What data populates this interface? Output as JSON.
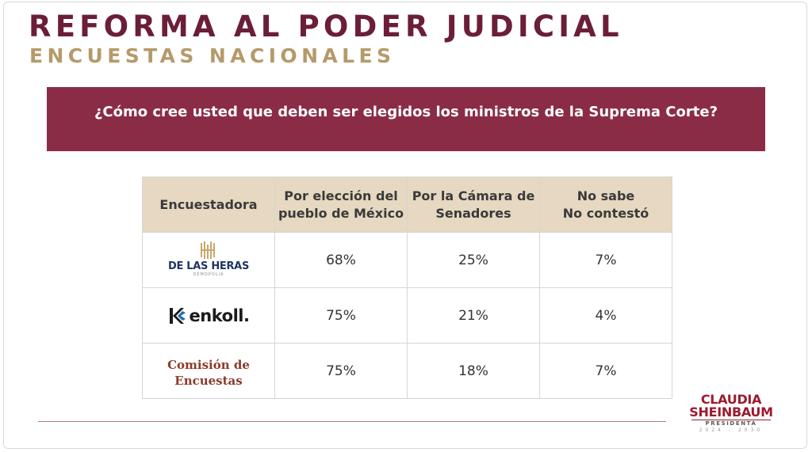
{
  "title": "REFORMA AL PODER JUDICIAL",
  "subtitle": "ENCUESTAS NACIONALES",
  "question": "¿Cómo cree usted que deben ser elegidos los ministros de la Suprema Corte?",
  "chart_data": {
    "type": "table",
    "columns": [
      "Encuestadora",
      "Por elección del pueblo de México",
      "Por la Cámara de Senadores",
      "No sabe No contestó"
    ],
    "header_lines": [
      [
        "Encuestadora"
      ],
      [
        "Por elección del",
        "pueblo de México"
      ],
      [
        "Por la Cámara de",
        "Senadores"
      ],
      [
        "No sabe",
        "No contestó"
      ]
    ],
    "rows": [
      {
        "pollster": "DE LAS HERAS",
        "pollster_sub": "DEMOPOLIA",
        "logo_icon": "de-las-heras-logo",
        "values": [
          "68%",
          "25%",
          "7%"
        ]
      },
      {
        "pollster": "enkoll.",
        "logo_icon": "enkoll-logo",
        "values": [
          "75%",
          "21%",
          "4%"
        ]
      },
      {
        "pollster_lines": [
          "Comisión de",
          "Encuestas"
        ],
        "logo_icon": "comision-de-encuestas-logo",
        "values": [
          "75%",
          "18%",
          "7%"
        ]
      }
    ]
  },
  "brand": {
    "line1": "CLAUDIA",
    "line2": "SHEINBAUM",
    "line3": "PRESIDENTA",
    "line4": "2024 - 2030"
  },
  "colors": {
    "title": "#6b1e38",
    "subtitle": "#b59a69",
    "banner": "#8b2c47",
    "table_header": "#e6d8c1",
    "brand": "#9b1b30"
  }
}
